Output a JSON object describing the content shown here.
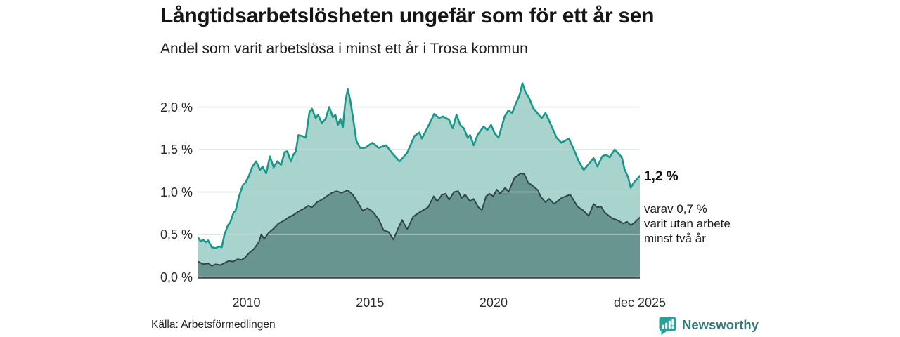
{
  "page": {
    "title": "Långtidsarbetslösheten ungefär som för ett år sen",
    "subtitle": "Andel som varit arbetslösa i minst ett år i Trosa kommun",
    "source": "Källa: Arbetsförmedlingen"
  },
  "branding": {
    "name": "Newsworthy",
    "icon": "newsworthy-logo-icon",
    "icon_color": "#2aa094",
    "text_color": "#38787b"
  },
  "annotations": {
    "latest_total": "1,2 %",
    "subset_lines": [
      "varav 0,7 %",
      "varit utan arbete",
      "minst två år"
    ]
  },
  "chart_data": {
    "type": "area",
    "title": "Långtidsarbetslösheten ungefär som för ett år sen",
    "subtitle": "Andel som varit arbetslösa i minst ett år i Trosa kommun",
    "xlabel": "",
    "ylabel": "",
    "grid": true,
    "legend": "none",
    "x_range": [
      2008.05,
      2025.92
    ],
    "y_range": [
      0,
      2.4
    ],
    "x_ticks": [
      {
        "label": "2010",
        "t": 2010
      },
      {
        "label": "2015",
        "t": 2015
      },
      {
        "label": "2020",
        "t": 2020
      },
      {
        "label": "dec 2025",
        "t": 2025.92
      }
    ],
    "y_ticks": [
      {
        "label": "0,0 %",
        "v": 0
      },
      {
        "label": "0,5 %",
        "v": 0.5
      },
      {
        "label": "1,0 %",
        "v": 1
      },
      {
        "label": "1,5 %",
        "v": 1.5
      },
      {
        "label": "2,0 %",
        "v": 2
      }
    ],
    "colors": {
      "gridline": "#ccd4d4",
      "axis_line": "#3d4545"
    },
    "series": [
      {
        "name": "Andel arbetslösa minst ett år",
        "latest_value": "1,2 %",
        "line_color": "#18988a",
        "fill_color": "#a8d4cd",
        "points": [
          [
            2008.05,
            0.46
          ],
          [
            2008.15,
            0.42
          ],
          [
            2008.25,
            0.44
          ],
          [
            2008.35,
            0.41
          ],
          [
            2008.45,
            0.43
          ],
          [
            2008.6,
            0.35
          ],
          [
            2008.75,
            0.34
          ],
          [
            2008.9,
            0.36
          ],
          [
            2009.0,
            0.35
          ],
          [
            2009.11,
            0.5
          ],
          [
            2009.25,
            0.61
          ],
          [
            2009.34,
            0.64
          ],
          [
            2009.48,
            0.76
          ],
          [
            2009.56,
            0.78
          ],
          [
            2009.7,
            0.95
          ],
          [
            2009.85,
            1.08
          ],
          [
            2009.96,
            1.11
          ],
          [
            2010.1,
            1.19
          ],
          [
            2010.24,
            1.3
          ],
          [
            2010.39,
            1.36
          ],
          [
            2010.55,
            1.26
          ],
          [
            2010.65,
            1.3
          ],
          [
            2010.8,
            1.22
          ],
          [
            2010.95,
            1.42
          ],
          [
            2011.1,
            1.29
          ],
          [
            2011.25,
            1.36
          ],
          [
            2011.4,
            1.32
          ],
          [
            2011.55,
            1.47
          ],
          [
            2011.65,
            1.48
          ],
          [
            2011.8,
            1.36
          ],
          [
            2011.9,
            1.44
          ],
          [
            2012.0,
            1.48
          ],
          [
            2012.1,
            1.67
          ],
          [
            2012.25,
            1.66
          ],
          [
            2012.4,
            1.64
          ],
          [
            2012.55,
            1.94
          ],
          [
            2012.65,
            1.98
          ],
          [
            2012.8,
            1.87
          ],
          [
            2012.9,
            1.91
          ],
          [
            2013.05,
            1.81
          ],
          [
            2013.2,
            1.86
          ],
          [
            2013.35,
            2.0
          ],
          [
            2013.5,
            1.88
          ],
          [
            2013.6,
            1.91
          ],
          [
            2013.7,
            1.79
          ],
          [
            2013.8,
            1.86
          ],
          [
            2013.9,
            1.76
          ],
          [
            2014.0,
            2.06
          ],
          [
            2014.1,
            2.21
          ],
          [
            2014.2,
            2.08
          ],
          [
            2014.3,
            1.9
          ],
          [
            2014.45,
            1.6
          ],
          [
            2014.6,
            1.52
          ],
          [
            2014.8,
            1.52
          ],
          [
            2015.1,
            1.58
          ],
          [
            2015.35,
            1.52
          ],
          [
            2015.65,
            1.55
          ],
          [
            2015.95,
            1.44
          ],
          [
            2016.2,
            1.36
          ],
          [
            2016.5,
            1.46
          ],
          [
            2016.8,
            1.66
          ],
          [
            2017.0,
            1.7
          ],
          [
            2017.1,
            1.63
          ],
          [
            2017.35,
            1.77
          ],
          [
            2017.6,
            1.92
          ],
          [
            2017.8,
            1.87
          ],
          [
            2017.95,
            1.89
          ],
          [
            2018.2,
            1.85
          ],
          [
            2018.35,
            1.75
          ],
          [
            2018.5,
            1.91
          ],
          [
            2018.65,
            1.79
          ],
          [
            2018.8,
            1.75
          ],
          [
            2018.95,
            1.64
          ],
          [
            2019.05,
            1.67
          ],
          [
            2019.2,
            1.55
          ],
          [
            2019.35,
            1.67
          ],
          [
            2019.6,
            1.77
          ],
          [
            2019.75,
            1.73
          ],
          [
            2019.9,
            1.79
          ],
          [
            2020.05,
            1.69
          ],
          [
            2020.2,
            1.64
          ],
          [
            2020.45,
            1.89
          ],
          [
            2020.6,
            1.96
          ],
          [
            2020.75,
            1.93
          ],
          [
            2020.9,
            2.04
          ],
          [
            2021.05,
            2.14
          ],
          [
            2021.17,
            2.28
          ],
          [
            2021.3,
            2.17
          ],
          [
            2021.45,
            2.1
          ],
          [
            2021.6,
            1.99
          ],
          [
            2021.8,
            1.92
          ],
          [
            2021.95,
            1.87
          ],
          [
            2022.1,
            1.93
          ],
          [
            2022.25,
            1.84
          ],
          [
            2022.4,
            1.74
          ],
          [
            2022.55,
            1.64
          ],
          [
            2022.75,
            1.58
          ],
          [
            2023.05,
            1.63
          ],
          [
            2023.25,
            1.5
          ],
          [
            2023.45,
            1.36
          ],
          [
            2023.65,
            1.26
          ],
          [
            2023.85,
            1.33
          ],
          [
            2024.05,
            1.4
          ],
          [
            2024.2,
            1.3
          ],
          [
            2024.4,
            1.42
          ],
          [
            2024.55,
            1.44
          ],
          [
            2024.7,
            1.41
          ],
          [
            2024.9,
            1.5
          ],
          [
            2025.1,
            1.44
          ],
          [
            2025.2,
            1.4
          ],
          [
            2025.3,
            1.27
          ],
          [
            2025.45,
            1.17
          ],
          [
            2025.55,
            1.05
          ],
          [
            2025.7,
            1.12
          ],
          [
            2025.92,
            1.19
          ]
        ]
      },
      {
        "name": "Andel utan arbete minst två år",
        "latest_value": "0,7 %",
        "line_color": "#2f4746",
        "fill_color": "#68958f",
        "points": [
          [
            2008.05,
            0.18
          ],
          [
            2008.25,
            0.15
          ],
          [
            2008.45,
            0.16
          ],
          [
            2008.6,
            0.13
          ],
          [
            2008.75,
            0.15
          ],
          [
            2008.95,
            0.14
          ],
          [
            2009.15,
            0.17
          ],
          [
            2009.3,
            0.19
          ],
          [
            2009.45,
            0.18
          ],
          [
            2009.65,
            0.21
          ],
          [
            2009.8,
            0.2
          ],
          [
            2009.95,
            0.23
          ],
          [
            2010.1,
            0.28
          ],
          [
            2010.3,
            0.33
          ],
          [
            2010.5,
            0.41
          ],
          [
            2010.6,
            0.5
          ],
          [
            2010.72,
            0.45
          ],
          [
            2010.9,
            0.52
          ],
          [
            2011.1,
            0.57
          ],
          [
            2011.3,
            0.63
          ],
          [
            2011.5,
            0.66
          ],
          [
            2011.7,
            0.7
          ],
          [
            2011.9,
            0.73
          ],
          [
            2012.1,
            0.77
          ],
          [
            2012.3,
            0.8
          ],
          [
            2012.5,
            0.84
          ],
          [
            2012.65,
            0.82
          ],
          [
            2012.85,
            0.88
          ],
          [
            2013.05,
            0.91
          ],
          [
            2013.25,
            0.95
          ],
          [
            2013.45,
            0.99
          ],
          [
            2013.65,
            1.01
          ],
          [
            2013.85,
            0.99
          ],
          [
            2014.1,
            1.02
          ],
          [
            2014.3,
            0.97
          ],
          [
            2014.5,
            0.88
          ],
          [
            2014.7,
            0.78
          ],
          [
            2014.9,
            0.81
          ],
          [
            2015.1,
            0.77
          ],
          [
            2015.35,
            0.68
          ],
          [
            2015.55,
            0.55
          ],
          [
            2015.75,
            0.53
          ],
          [
            2015.95,
            0.44
          ],
          [
            2016.15,
            0.58
          ],
          [
            2016.3,
            0.67
          ],
          [
            2016.5,
            0.56
          ],
          [
            2016.75,
            0.71
          ],
          [
            2017.0,
            0.76
          ],
          [
            2017.35,
            0.82
          ],
          [
            2017.58,
            0.95
          ],
          [
            2017.72,
            0.89
          ],
          [
            2017.92,
            0.97
          ],
          [
            2018.06,
            0.98
          ],
          [
            2018.2,
            0.91
          ],
          [
            2018.4,
            1.0
          ],
          [
            2018.57,
            1.01
          ],
          [
            2018.71,
            0.93
          ],
          [
            2018.85,
            0.97
          ],
          [
            2019.05,
            0.89
          ],
          [
            2019.19,
            0.92
          ],
          [
            2019.39,
            0.82
          ],
          [
            2019.53,
            0.79
          ],
          [
            2019.7,
            0.95
          ],
          [
            2019.84,
            0.98
          ],
          [
            2019.99,
            0.95
          ],
          [
            2020.13,
            1.03
          ],
          [
            2020.27,
            0.98
          ],
          [
            2020.47,
            1.05
          ],
          [
            2020.61,
            1.0
          ],
          [
            2020.72,
            1.08
          ],
          [
            2020.85,
            1.17
          ],
          [
            2021.1,
            1.22
          ],
          [
            2021.25,
            1.21
          ],
          [
            2021.4,
            1.11
          ],
          [
            2021.6,
            1.07
          ],
          [
            2021.8,
            1.02
          ],
          [
            2021.9,
            0.95
          ],
          [
            2022.1,
            0.88
          ],
          [
            2022.25,
            0.92
          ],
          [
            2022.45,
            0.86
          ],
          [
            2022.75,
            0.93
          ],
          [
            2023.1,
            0.97
          ],
          [
            2023.4,
            0.83
          ],
          [
            2023.6,
            0.79
          ],
          [
            2023.85,
            0.72
          ],
          [
            2024.05,
            0.86
          ],
          [
            2024.2,
            0.82
          ],
          [
            2024.35,
            0.83
          ],
          [
            2024.5,
            0.76
          ],
          [
            2024.8,
            0.69
          ],
          [
            2025.0,
            0.67
          ],
          [
            2025.25,
            0.63
          ],
          [
            2025.4,
            0.65
          ],
          [
            2025.55,
            0.61
          ],
          [
            2025.7,
            0.64
          ],
          [
            2025.92,
            0.7
          ]
        ]
      }
    ]
  }
}
